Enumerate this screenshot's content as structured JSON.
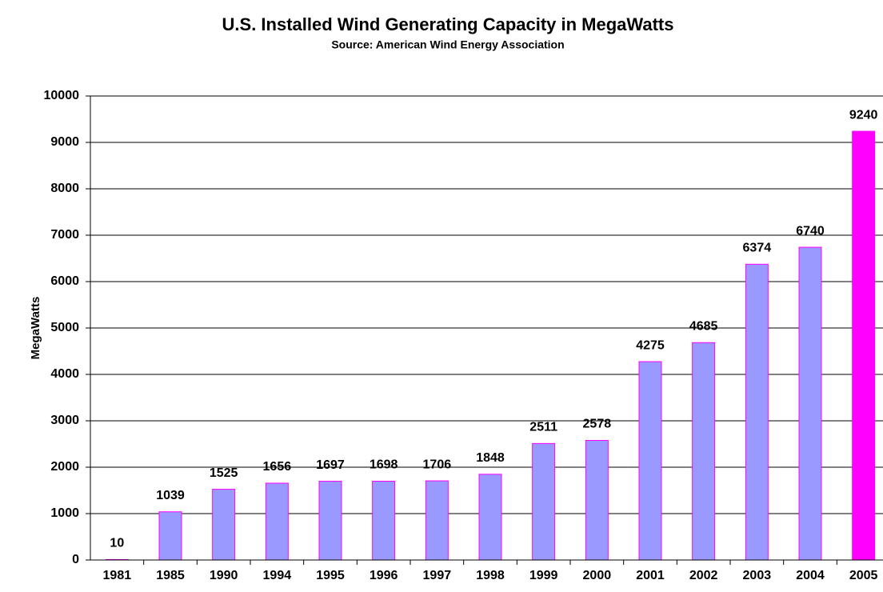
{
  "chart_data": {
    "type": "bar",
    "title": "U.S. Installed Wind Generating Capacity in MegaWatts",
    "subtitle": "Source: American Wind Energy Association",
    "y_label": "MegaWatts",
    "categories": [
      "1981",
      "1985",
      "1990",
      "1994",
      "1995",
      "1996",
      "1997",
      "1998",
      "1999",
      "2000",
      "2001",
      "2002",
      "2003",
      "2004",
      "2005"
    ],
    "values": [
      10,
      1039,
      1525,
      1656,
      1697,
      1698,
      1706,
      1848,
      2511,
      2578,
      4275,
      4685,
      6374,
      6740,
      9240
    ],
    "colors": [
      "#9999ff",
      "#9999ff",
      "#9999ff",
      "#9999ff",
      "#9999ff",
      "#9999ff",
      "#9999ff",
      "#9999ff",
      "#9999ff",
      "#9999ff",
      "#9999ff",
      "#9999ff",
      "#9999ff",
      "#9999ff",
      "#ff00ff"
    ],
    "edge_color": "#ff00ff",
    "ylim": [
      0,
      10000
    ],
    "yticks": [
      0,
      1000,
      2000,
      3000,
      4000,
      5000,
      6000,
      7000,
      8000,
      9000,
      10000
    ],
    "grid": true
  }
}
